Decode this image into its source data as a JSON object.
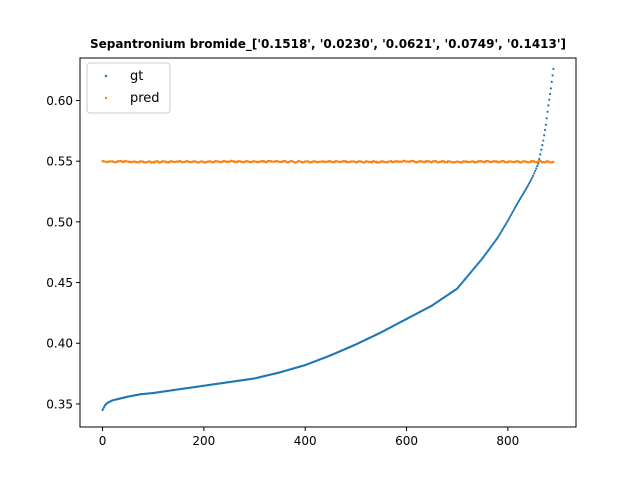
{
  "chart_data": {
    "type": "scatter",
    "title": "Sepantronium bromide_['0.1518', '0.0230', '0.0621', '0.0749', '0.1413']",
    "xlabel": "",
    "ylabel": "",
    "xlim": [
      -44.5,
      934.5
    ],
    "ylim": [
      0.331,
      0.635
    ],
    "grid": false,
    "legend_position": "upper-left",
    "x_ticks": [
      {
        "value": 0,
        "label": "0"
      },
      {
        "value": 200,
        "label": "200"
      },
      {
        "value": 400,
        "label": "400"
      },
      {
        "value": 600,
        "label": "600"
      },
      {
        "value": 800,
        "label": "800"
      }
    ],
    "y_ticks": [
      {
        "value": 0.35,
        "label": "0.35"
      },
      {
        "value": 0.4,
        "label": "0.40"
      },
      {
        "value": 0.45,
        "label": "0.45"
      },
      {
        "value": 0.5,
        "label": "0.50"
      },
      {
        "value": 0.55,
        "label": "0.55"
      },
      {
        "value": 0.6,
        "label": "0.60"
      }
    ],
    "series": [
      {
        "name": "gt",
        "color": "#1f77b4",
        "x": [
          0,
          5,
          10,
          20,
          30,
          50,
          75,
          100,
          150,
          200,
          250,
          300,
          350,
          400,
          450,
          500,
          550,
          600,
          650,
          700,
          720,
          750,
          780,
          800,
          820,
          840,
          850,
          860,
          870,
          875,
          880,
          885,
          890
        ],
        "y": [
          0.345,
          0.349,
          0.351,
          0.353,
          0.354,
          0.356,
          0.358,
          0.359,
          0.362,
          0.365,
          0.368,
          0.371,
          0.376,
          0.382,
          0.39,
          0.399,
          0.409,
          0.42,
          0.431,
          0.445,
          0.455,
          0.47,
          0.487,
          0.501,
          0.516,
          0.53,
          0.538,
          0.548,
          0.567,
          0.58,
          0.596,
          0.61,
          0.626
        ]
      },
      {
        "name": "pred",
        "color": "#ff7f0e",
        "x": [
          0,
          50,
          100,
          150,
          200,
          250,
          300,
          350,
          400,
          450,
          500,
          550,
          600,
          650,
          700,
          750,
          800,
          850,
          890
        ],
        "y": [
          0.5495,
          0.5497,
          0.5493,
          0.5496,
          0.5494,
          0.5498,
          0.5495,
          0.5497,
          0.5494,
          0.5496,
          0.5495,
          0.5494,
          0.5498,
          0.5496,
          0.5493,
          0.5497,
          0.5495,
          0.5496,
          0.5495
        ]
      }
    ]
  }
}
